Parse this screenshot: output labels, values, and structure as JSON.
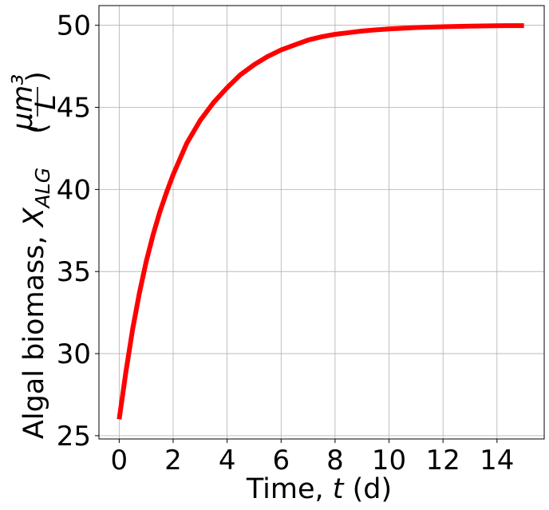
{
  "chart_data": {
    "type": "line",
    "title": "",
    "xlabel": "Time, t (d)",
    "xlabel_parts": {
      "prefix": "Time, ",
      "var": "t",
      "suffix": " (d)"
    },
    "ylabel": "Algal biomass, X_ALG (μm³/L)",
    "ylabel_parts": {
      "prefix": "Algal biomass, ",
      "var": "X",
      "sub": "ALG",
      "frac_num": "μm³",
      "frac_den": "L"
    },
    "xlim": [
      -0.75,
      15.75
    ],
    "ylim": [
      24.8,
      51.2
    ],
    "xticks": [
      0,
      2,
      4,
      6,
      8,
      10,
      12,
      14
    ],
    "yticks": [
      25,
      30,
      35,
      40,
      45,
      50
    ],
    "grid": true,
    "series": [
      {
        "color": "#ff0000",
        "x": [
          0,
          0.25,
          0.5,
          0.75,
          1,
          1.25,
          1.5,
          1.75,
          2,
          2.5,
          3,
          3.5,
          4,
          4.5,
          5,
          5.5,
          6,
          6.5,
          7,
          7.5,
          8,
          8.5,
          9,
          9.5,
          10,
          10.5,
          11,
          11.5,
          12,
          12.5,
          13,
          13.5,
          14,
          14.5,
          15
        ],
        "y": [
          26.0,
          28.9,
          31.5,
          33.7,
          35.6,
          37.2,
          38.6,
          39.8,
          40.9,
          42.8,
          44.2,
          45.3,
          46.2,
          47.0,
          47.6,
          48.1,
          48.5,
          48.8,
          49.1,
          49.3,
          49.45,
          49.55,
          49.65,
          49.72,
          49.78,
          49.82,
          49.86,
          49.89,
          49.91,
          49.93,
          49.95,
          49.96,
          49.97,
          49.98,
          49.98
        ]
      }
    ]
  }
}
